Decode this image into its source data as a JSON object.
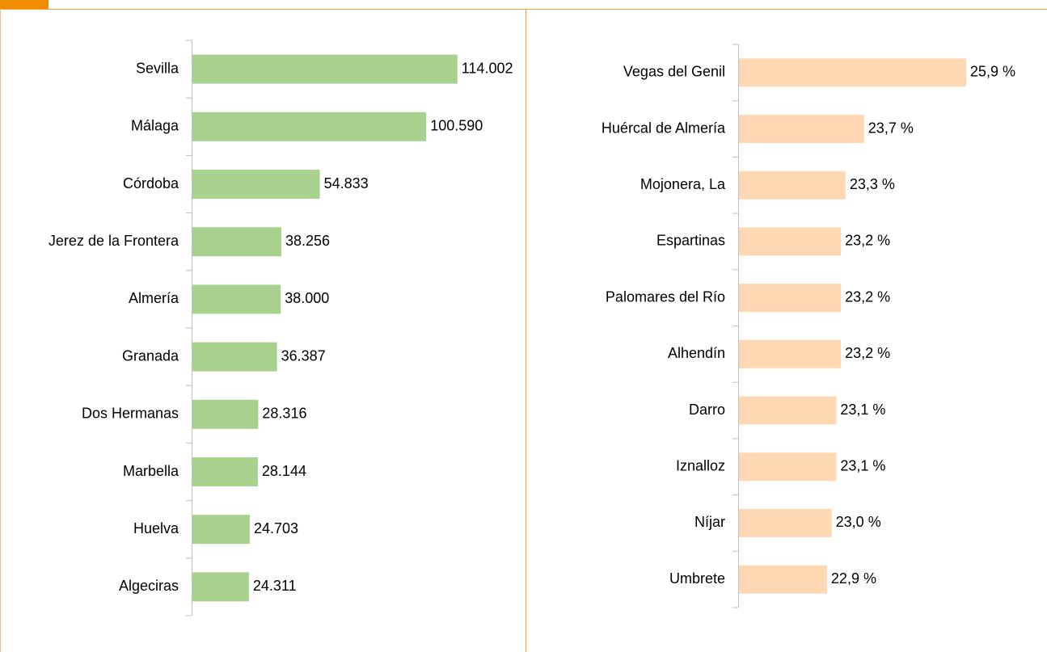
{
  "chart_data": [
    {
      "type": "barh",
      "categories": [
        "Sevilla",
        "Málaga",
        "Córdoba",
        "Jerez de la Frontera",
        "Almería",
        "Granada",
        "Dos Hermanas",
        "Marbella",
        "Huelva",
        "Algeciras"
      ],
      "values": [
        114002,
        100590,
        54833,
        38256,
        38000,
        36387,
        28316,
        28144,
        24703,
        24311
      ],
      "value_labels": [
        "114.002",
        "100.590",
        "54.833",
        "38.256",
        "38.000",
        "36.387",
        "28.316",
        "28.144",
        "24.703",
        "24.311"
      ],
      "color": "#a9d18e",
      "xlim": [
        0,
        120000
      ]
    },
    {
      "type": "barh",
      "categories": [
        "Vegas del Genil",
        "Huércal de Almería",
        "Mojonera, La",
        "Espartinas",
        "Palomares del Río",
        "Alhendín",
        "Darro",
        "Iznalloz",
        "Níjar",
        "Umbrete"
      ],
      "values": [
        25.9,
        23.7,
        23.3,
        23.2,
        23.2,
        23.2,
        23.1,
        23.1,
        23.0,
        22.9
      ],
      "value_labels": [
        "25,9 %",
        "23,7 %",
        "23,3 %",
        "23,2 %",
        "23,2 %",
        "23,2 %",
        "23,1 %",
        "23,1 %",
        "23,0 %",
        "22,9 %"
      ],
      "color": "#fdd8b2",
      "xlim": [
        21,
        27
      ]
    }
  ]
}
